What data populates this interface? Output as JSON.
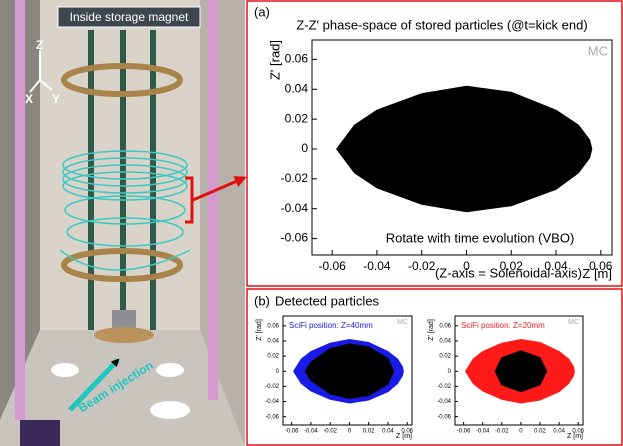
{
  "figure": {
    "image_labels": {
      "caption": "Inside storage magnet",
      "z": "Z",
      "x": "X",
      "y": "Y",
      "beam": "Beam injection"
    },
    "panel_a": {
      "label": "(a)"
    },
    "panel_b": {
      "label": "(b)",
      "title": "Detected particles"
    }
  },
  "chart_data": [
    {
      "type": "area",
      "title": "Z-Z' phase-space of stored particles (@t=kick end)",
      "x_label": "Z [m]",
      "y_label": "Z' [rad]",
      "watermark": "MC",
      "annotations": [
        "Rotate with time evolution (VBO)",
        "(Z-axis = Solenoidal-axis)"
      ],
      "xlim": [
        -0.069,
        0.065
      ],
      "ylim": [
        -0.071,
        0.073
      ],
      "xticks": [
        -0.06,
        -0.04,
        -0.02,
        0,
        0.02,
        0.04,
        0.06
      ],
      "yticks": [
        -0.06,
        -0.04,
        -0.02,
        0,
        0.02,
        0.04,
        0.06
      ],
      "series": [
        {
          "color": "#000000",
          "x": [
            -0.058,
            -0.05,
            -0.04,
            -0.02,
            0,
            0.02,
            0.04,
            0.05,
            0.055,
            0.056,
            0.055,
            0.05,
            0.04,
            0.02,
            0,
            -0.02,
            -0.04,
            -0.05
          ],
          "values": [
            0,
            0.016,
            0.026,
            0.037,
            0.042,
            0.038,
            0.026,
            0.016,
            0.006,
            0,
            -0.006,
            -0.016,
            -0.027,
            -0.038,
            -0.042,
            -0.037,
            -0.026,
            -0.016
          ]
        }
      ]
    },
    {
      "type": "area",
      "x_label": "Z [m]",
      "y_label": "Z' [rad]",
      "watermark": "MC",
      "annotation": {
        "text": "SciFi position: Z=40mm",
        "color": "#1a1ae6"
      },
      "xlim": [
        -0.069,
        0.065
      ],
      "ylim": [
        -0.071,
        0.073
      ],
      "xticks": [
        -0.06,
        -0.04,
        -0.02,
        0,
        0.02,
        0.04,
        0.06
      ],
      "yticks": [
        -0.06,
        -0.04,
        -0.02,
        0,
        0.02,
        0.04,
        0.06
      ],
      "series": [
        {
          "color": "#1a1ae6",
          "x": [
            -0.058,
            -0.05,
            -0.04,
            -0.02,
            0,
            0.02,
            0.04,
            0.05,
            0.055,
            0.056,
            0.055,
            0.05,
            0.04,
            0.02,
            0,
            -0.02,
            -0.04,
            -0.05
          ],
          "values": [
            0,
            0.016,
            0.026,
            0.037,
            0.042,
            0.038,
            0.026,
            0.016,
            0.006,
            0,
            -0.006,
            -0.016,
            -0.027,
            -0.038,
            -0.042,
            -0.037,
            -0.026,
            -0.016
          ]
        },
        {
          "color": "#000000",
          "x": [
            -0.046,
            -0.04,
            -0.02,
            0,
            0.02,
            0.04,
            0.046,
            0.04,
            0.02,
            0,
            -0.02,
            -0.04
          ],
          "values": [
            0,
            0.012,
            0.03,
            0.036,
            0.032,
            0.017,
            0,
            -0.017,
            -0.032,
            -0.036,
            -0.03,
            -0.012
          ]
        }
      ]
    },
    {
      "type": "area",
      "x_label": "Z [m]",
      "y_label": "Z' [rad]",
      "watermark": "MC",
      "annotation": {
        "text": "SciFi position: Z=20mm",
        "color": "#ff1a1a"
      },
      "xlim": [
        -0.069,
        0.065
      ],
      "ylim": [
        -0.071,
        0.073
      ],
      "xticks": [
        -0.06,
        -0.04,
        -0.02,
        0,
        0.02,
        0.04,
        0.06
      ],
      "yticks": [
        -0.06,
        -0.04,
        -0.02,
        0,
        0.02,
        0.04,
        0.06
      ],
      "series": [
        {
          "color": "#ff1a1a",
          "x": [
            -0.058,
            -0.05,
            -0.04,
            -0.02,
            0,
            0.02,
            0.04,
            0.05,
            0.055,
            0.056,
            0.055,
            0.05,
            0.04,
            0.02,
            0,
            -0.02,
            -0.04,
            -0.05
          ],
          "values": [
            0,
            0.016,
            0.026,
            0.037,
            0.042,
            0.038,
            0.026,
            0.016,
            0.006,
            0,
            -0.006,
            -0.016,
            -0.027,
            -0.038,
            -0.042,
            -0.037,
            -0.026,
            -0.016
          ]
        },
        {
          "color": "#000000",
          "x": [
            -0.027,
            -0.02,
            0,
            0.02,
            0.027,
            0.02,
            0,
            -0.02
          ],
          "values": [
            0,
            0.018,
            0.027,
            0.018,
            0,
            -0.018,
            -0.027,
            -0.018
          ]
        }
      ]
    }
  ]
}
